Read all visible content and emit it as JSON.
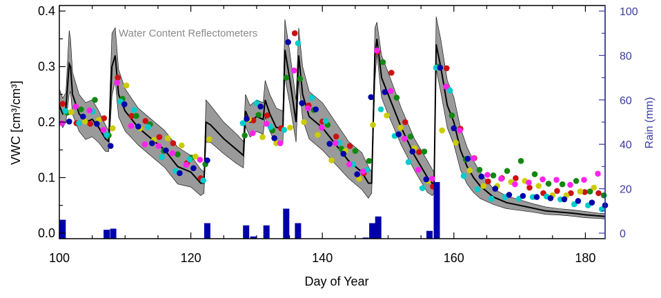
{
  "chart_data": {
    "type": "scatter",
    "annotation": "Water Content Reflectometers",
    "xlabel": "Day of Year",
    "ylabel": "VWC [cm³/cm³]",
    "y2label": "Rain (mm)",
    "xlim": [
      100,
      183
    ],
    "ylim": [
      -0.01,
      0.41
    ],
    "y2lim": [
      -2.5,
      102.5
    ],
    "x_ticks": [
      100,
      120,
      140,
      160,
      180
    ],
    "y_ticks": [
      0.0,
      0.1,
      0.2,
      0.3,
      0.4
    ],
    "y_tick_labels": [
      "0.0",
      "0.1",
      "0.2",
      "0.3",
      "0.4"
    ],
    "y2_ticks": [
      0,
      20,
      40,
      60,
      80,
      100
    ],
    "colors": {
      "axis": "#000000",
      "rain_axis": "#3a3aa0",
      "rain_bar": "#0000aa",
      "band": "#9a9a9a",
      "mean_line": "#000000",
      "annotation": "#8a8a8a"
    },
    "mean_series": {
      "x": [
        100,
        100.5,
        101,
        101.5,
        101.7,
        102,
        103,
        104,
        105,
        106,
        107,
        107.5,
        108,
        108.5,
        109,
        110,
        112,
        114,
        116,
        118,
        120,
        121.5,
        122,
        122.3,
        123,
        125,
        127,
        128,
        128.3,
        129,
        130,
        131,
        131.3,
        132,
        133,
        134,
        134.3,
        135,
        136,
        136.4,
        137,
        138,
        140,
        142,
        144,
        146,
        147,
        147.5,
        148,
        148.3,
        149,
        150,
        152,
        154,
        156,
        156.7,
        157,
        157.3,
        158,
        159,
        160,
        161,
        162,
        163,
        164,
        166,
        168,
        170,
        172,
        174,
        176,
        178,
        180,
        182,
        183
      ],
      "y": [
        0.23,
        0.215,
        0.225,
        0.305,
        0.3,
        0.25,
        0.215,
        0.2,
        0.205,
        0.19,
        0.17,
        0.165,
        0.3,
        0.32,
        0.25,
        0.22,
        0.19,
        0.17,
        0.15,
        0.12,
        0.11,
        0.09,
        0.09,
        0.2,
        0.195,
        0.17,
        0.15,
        0.14,
        0.22,
        0.2,
        0.21,
        0.205,
        0.24,
        0.215,
        0.19,
        0.19,
        0.33,
        0.28,
        0.2,
        0.32,
        0.25,
        0.21,
        0.19,
        0.16,
        0.13,
        0.11,
        0.09,
        0.09,
        0.32,
        0.35,
        0.28,
        0.25,
        0.19,
        0.14,
        0.1,
        0.09,
        0.09,
        0.34,
        0.3,
        0.23,
        0.2,
        0.15,
        0.12,
        0.1,
        0.085,
        0.065,
        0.055,
        0.05,
        0.045,
        0.04,
        0.038,
        0.036,
        0.033,
        0.031,
        0.03
      ]
    },
    "band_spread": [
      0.03,
      0.028,
      0.028,
      0.06,
      0.05,
      0.04,
      0.035,
      0.035,
      0.035,
      0.03,
      0.025,
      0.02,
      0.06,
      0.05,
      0.045,
      0.04,
      0.035,
      0.035,
      0.035,
      0.035,
      0.03,
      0.025,
      0.02,
      0.04,
      0.035,
      0.03,
      0.028,
      0.025,
      0.03,
      0.03,
      0.03,
      0.03,
      0.035,
      0.035,
      0.035,
      0.03,
      0.055,
      0.05,
      0.04,
      0.05,
      0.05,
      0.045,
      0.045,
      0.04,
      0.035,
      0.035,
      0.03,
      0.02,
      0.05,
      0.03,
      0.04,
      0.04,
      0.035,
      0.03,
      0.03,
      0.025,
      0.02,
      0.05,
      0.05,
      0.045,
      0.045,
      0.04,
      0.035,
      0.03,
      0.025,
      0.015,
      0.012,
      0.01,
      0.008,
      0.007,
      0.006,
      0.006,
      0.006,
      0.005,
      0.005
    ],
    "rain": {
      "x": [
        100.5,
        107.2,
        108.2,
        122.5,
        128.4,
        129.5,
        131.5,
        134.5,
        136.3,
        146.6,
        147.6,
        148.5,
        156.3,
        157.4
      ],
      "y": [
        8.5,
        4.0,
        4.5,
        7.0,
        6.0,
        1.0,
        6.0,
        13.5,
        7.0,
        0.5,
        7.0,
        10.0,
        3.5,
        25.5
      ]
    },
    "series": [
      {
        "color": "#cc1111",
        "x": [
          100.5,
          102.6,
          104.7,
          106.8,
          108.9,
          111,
          113.1,
          115.2,
          117.3,
          119.4,
          121.5,
          129.5,
          131.6,
          133.7,
          135.8,
          137.9,
          140,
          142.1,
          144.2,
          146.3,
          148.4,
          150.5,
          152.6,
          154.7,
          156.8,
          158.9,
          161,
          163.1,
          165.2,
          167.3,
          169.4,
          171.5,
          173.6,
          175.7,
          177.8,
          179.9,
          182
        ],
        "y": [
          0.233,
          0.198,
          0.197,
          0.207,
          0.28,
          0.211,
          0.202,
          0.173,
          0.162,
          0.126,
          0.099,
          0.203,
          0.212,
          0.189,
          0.36,
          0.23,
          0.201,
          0.174,
          0.157,
          0.108,
          0.327,
          0.289,
          0.2,
          0.146,
          0.084,
          0.297,
          0.188,
          0.135,
          0.093,
          0.099,
          0.099,
          0.082,
          0.072,
          0.076,
          0.072,
          0.074,
          0.072
        ]
      },
      {
        "color": "#118811",
        "x": [
          101.2,
          103.3,
          105.4,
          107.5,
          109.6,
          111.7,
          113.8,
          115.9,
          118,
          120.1,
          122.2,
          128.2,
          130.3,
          132.4,
          134.5,
          136.6,
          138.7,
          140.8,
          142.9,
          145,
          147.1,
          149.2,
          151.3,
          153.4,
          155.5,
          157.6,
          159.7,
          161.8,
          163.9,
          166,
          168.1,
          170.2,
          172.3,
          174.4,
          176.5,
          178.6,
          180.7,
          182.8
        ],
        "y": [
          0.217,
          0.223,
          0.24,
          0.176,
          0.242,
          0.211,
          0.196,
          0.148,
          0.142,
          0.136,
          0.124,
          0.176,
          0.213,
          0.185,
          0.28,
          0.278,
          0.222,
          0.195,
          0.152,
          0.148,
          0.13,
          0.308,
          0.244,
          0.174,
          0.147,
          0.3,
          0.212,
          0.133,
          0.114,
          0.104,
          0.112,
          0.13,
          0.106,
          0.089,
          0.088,
          0.094,
          0.075,
          0.068
        ]
      },
      {
        "color": "#cccc00",
        "x": [
          101.8,
          103.9,
          106,
          108.1,
          110.2,
          112.3,
          114.4,
          116.5,
          118.6,
          120.7,
          122.8,
          128.8,
          130.9,
          133,
          135.1,
          137.2,
          139.3,
          141.4,
          143.5,
          145.6,
          147.7,
          149.8,
          151.9,
          154,
          156.1,
          158.2,
          160.3,
          162.4,
          164.5,
          166.6,
          168.7,
          170.8,
          172.9,
          175,
          177.1,
          179.2,
          181.3
        ],
        "y": [
          0.218,
          0.201,
          0.204,
          0.189,
          0.266,
          0.189,
          0.168,
          0.171,
          0.158,
          0.138,
          0.169,
          0.205,
          0.173,
          0.162,
          0.19,
          0.2,
          0.177,
          0.131,
          0.148,
          0.098,
          0.195,
          0.212,
          0.19,
          0.153,
          0.094,
          0.185,
          0.163,
          0.113,
          0.085,
          0.085,
          0.092,
          0.094,
          0.085,
          0.068,
          0.068,
          0.075,
          0.082
        ]
      },
      {
        "color": "#00cccc",
        "x": [
          100.9,
          103,
          105.1,
          107.2,
          109.3,
          111.4,
          113.5,
          115.6,
          117.7,
          119.8,
          121.9,
          127.9,
          130,
          132.1,
          134.2,
          136.3,
          138.4,
          140.5,
          142.6,
          144.7,
          146.8,
          148.9,
          151,
          153.1,
          155.2,
          157.3,
          159.4,
          161.5,
          163.6,
          165.7,
          167.8,
          169.9,
          172,
          174.1,
          176.2,
          178.3,
          180.4,
          182.5
        ],
        "y": [
          0.22,
          0.198,
          0.219,
          0.177,
          0.237,
          0.222,
          0.191,
          0.137,
          0.112,
          0.133,
          0.095,
          0.198,
          0.234,
          0.191,
          0.186,
          0.342,
          0.244,
          0.202,
          0.163,
          0.124,
          0.114,
          0.223,
          0.175,
          0.128,
          0.081,
          0.298,
          0.257,
          0.103,
          0.079,
          0.062,
          0.065,
          0.062,
          0.065,
          0.066,
          0.061,
          0.052,
          0.05,
          0.043
        ]
      },
      {
        "color": "#ff22ee",
        "x": [
          100.4,
          102.5,
          104.6,
          106.7,
          108.8,
          110.9,
          113,
          115.1,
          117.2,
          119.3,
          121.4,
          129.4,
          131.5,
          133.6,
          135.7,
          137.8,
          139.9,
          142,
          144.1,
          146.2,
          148.3,
          150.4,
          152.5,
          154.6,
          156.7,
          158.8,
          160.9,
          163,
          165.1,
          167.2,
          169.3,
          171.4,
          173.5,
          175.6,
          177.7,
          179.8,
          181.9
        ],
        "y": [
          0.198,
          0.228,
          0.221,
          0.186,
          0.271,
          0.193,
          0.16,
          0.157,
          0.144,
          0.123,
          0.132,
          0.18,
          0.197,
          0.162,
          0.293,
          0.225,
          0.19,
          0.162,
          0.124,
          0.111,
          0.329,
          0.256,
          0.17,
          0.114,
          0.098,
          0.264,
          0.185,
          0.135,
          0.105,
          0.098,
          0.088,
          0.091,
          0.097,
          0.096,
          0.087,
          0.096,
          0.107
        ]
      },
      {
        "color": "#0000aa",
        "x": [
          101.5,
          103.6,
          105.7,
          107.8,
          109.9,
          112,
          114.1,
          116.2,
          118.3,
          120.4,
          122.5,
          128.5,
          130.6,
          132.7,
          134.8,
          136.9,
          139,
          141.1,
          143.2,
          145.3,
          147.4,
          149.5,
          151.6,
          153.7,
          155.8,
          157.9,
          160,
          162.1,
          164.2,
          166.3,
          168.4,
          170.5,
          172.6,
          174.7,
          176.8,
          178.9,
          181,
          183
        ],
        "y": [
          0.201,
          0.21,
          0.197,
          0.157,
          0.232,
          0.192,
          0.162,
          0.149,
          0.108,
          0.117,
          0.131,
          0.206,
          0.228,
          0.171,
          0.344,
          0.234,
          0.223,
          0.161,
          0.143,
          0.106,
          0.245,
          0.254,
          0.178,
          0.147,
          0.097,
          0.298,
          0.189,
          0.134,
          0.102,
          0.08,
          0.069,
          0.067,
          0.065,
          0.063,
          0.061,
          0.058,
          0.055,
          0.05
        ]
      }
    ]
  }
}
